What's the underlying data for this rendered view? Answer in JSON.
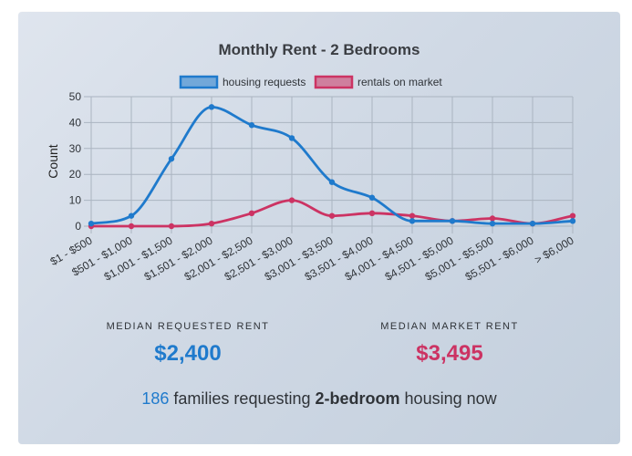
{
  "colors": {
    "requests": "#1f7acc",
    "market": "#cc3363",
    "text": "#2f3338",
    "grid": "#aab4c0"
  },
  "chart_data": {
    "type": "line",
    "title": "Monthly Rent - 2 Bedrooms",
    "xlabel": "",
    "ylabel": "Count",
    "ylim": [
      0,
      50
    ],
    "yticks": [
      0,
      10,
      20,
      30,
      40,
      50
    ],
    "grid": true,
    "legend_position": "top",
    "categories": [
      "$1 - $500",
      "$501 - $1,000",
      "$1,001 - $1,500",
      "$1,501 - $2,000",
      "$2,001 - $2,500",
      "$2,501 - $3,000",
      "$3,001 - $3,500",
      "$3,501 - $4,000",
      "$4,001 - $4,500",
      "$4,501 - $5,000",
      "$5,001 - $5,500",
      "$5,501 - $6,000",
      "> $6,000"
    ],
    "series": [
      {
        "name": "housing requests",
        "color": "#1f7acc",
        "values": [
          1,
          4,
          26,
          46,
          39,
          34,
          17,
          11,
          2,
          2,
          1,
          1,
          2
        ]
      },
      {
        "name": "rentals on market",
        "color": "#cc3363",
        "values": [
          0,
          0,
          0,
          1,
          5,
          10,
          4,
          5,
          4,
          2,
          3,
          1,
          4
        ]
      }
    ]
  },
  "stats": {
    "requested_label": "MEDIAN REQUESTED RENT",
    "requested_value": "$2,400",
    "market_label": "MEDIAN MARKET RENT",
    "market_value": "$3,495"
  },
  "summary": {
    "count": "186",
    "text_before": "families requesting",
    "bold": "2-bedroom",
    "text_after": "housing now"
  }
}
